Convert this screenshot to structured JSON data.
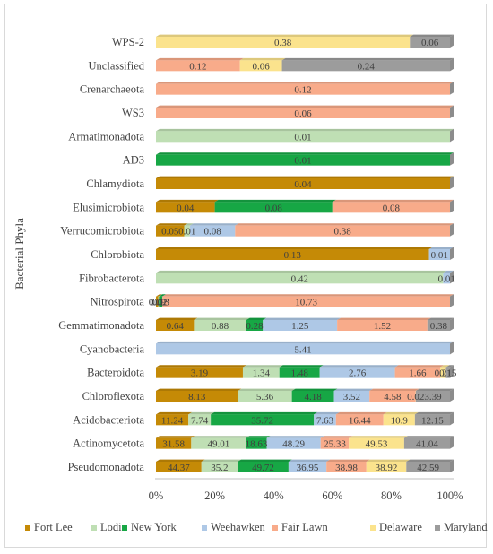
{
  "chart_data": {
    "type": "bar",
    "orientation": "horizontal",
    "stacking": "percent",
    "ylabel": "Bacterial Phyla",
    "xlabel": "",
    "xlim": [
      0,
      100
    ],
    "x_ticks": [
      "0%",
      "20%",
      "40%",
      "60%",
      "80%",
      "100%"
    ],
    "legend_position": "bottom",
    "grid": false,
    "categories": [
      "Pseudomonadota",
      "Actinomycetota",
      "Acidobacteriota",
      "Chloroflexota",
      "Bacteroidota",
      "Cyanobacteria",
      "Gemmatimonadota",
      "Nitrospirota",
      "Fibrobacterota",
      "Chlorobiota",
      "Verrucomicrobiota",
      "Elusimicrobiota",
      "Chlamydiota",
      "AD3",
      "Armatimonadota",
      "WS3",
      "Crenarchaeota",
      "Unclassified",
      "WPS-2"
    ],
    "series": [
      {
        "name": "Fort Lee",
        "color": "#c58a06",
        "values": [
          44.37,
          31.58,
          11.24,
          8.13,
          3.19,
          0,
          0.64,
          0.09,
          0,
          0.13,
          0.05,
          0.04,
          0.04,
          0,
          0,
          0,
          0,
          0,
          0
        ],
        "labels": [
          "44.37",
          "31.58",
          "11.24",
          "8.13",
          "3.19",
          "",
          "0.64",
          "0.09",
          "",
          "0.13",
          "0.05",
          "0.04",
          "0.04",
          "",
          "",
          "",
          "",
          "",
          ""
        ]
      },
      {
        "name": "Lodi",
        "color": "#bfdfb4",
        "values": [
          35.2,
          49.01,
          7.74,
          5.36,
          1.34,
          0,
          0.88,
          0.02,
          0.42,
          0,
          0.01,
          0,
          0,
          0,
          0.01,
          0,
          0,
          0,
          0
        ],
        "labels": [
          "35.2",
          "49.01",
          "7.74",
          "5.36",
          "1.34",
          "",
          "0.88",
          "0.02",
          "0.42",
          "",
          "0.01",
          "",
          "",
          "",
          "0.01",
          "",
          "",
          "",
          ""
        ]
      },
      {
        "name": "New York",
        "color": "#17a745",
        "values": [
          49.72,
          18.63,
          35.72,
          4.18,
          1.48,
          0,
          0.28,
          0.13,
          0,
          0,
          0,
          0.08,
          0,
          0.01,
          0,
          0,
          0,
          0,
          0
        ],
        "labels": [
          "49.72",
          "18.63",
          "35.72",
          "4.18",
          "1.48",
          "",
          "0.28",
          "0.13",
          "",
          "",
          "",
          "0.08",
          "",
          "0.01",
          "",
          "",
          "",
          "",
          ""
        ]
      },
      {
        "name": "Weehawken",
        "color": "#aec8e6",
        "values": [
          36.95,
          48.29,
          7.63,
          3.52,
          2.76,
          5.41,
          1.25,
          0,
          0.01,
          0.01,
          0.08,
          0,
          0,
          0,
          0,
          0,
          0,
          0,
          0
        ],
        "labels": [
          "36.95",
          "48.29",
          "7.63",
          "3.52",
          "2.76",
          "5.41",
          "1.25",
          "",
          "0.01",
          "0.01",
          "0.08",
          "",
          "",
          "",
          "",
          "",
          "",
          "",
          ""
        ]
      },
      {
        "name": "Fair Lawn",
        "color": "#f8ab8a",
        "values": [
          38.98,
          25.33,
          16.44,
          4.58,
          1.66,
          0,
          1.52,
          10.73,
          0,
          0,
          0.38,
          0.08,
          0,
          0,
          0,
          0.06,
          0.12,
          0.12,
          0
        ],
        "labels": [
          "38.98",
          "25.33",
          "16.44",
          "4.58",
          "1.66",
          "",
          "1.52",
          "10.73",
          "",
          "",
          "0.38",
          "0.08",
          "",
          "",
          "",
          "0.06",
          "0.12",
          "0.12",
          ""
        ]
      },
      {
        "name": "Delaware",
        "color": "#fbe38d",
        "values": [
          38.92,
          49.53,
          10.9,
          0.02,
          0.21,
          0,
          0,
          0,
          0,
          0,
          0,
          0,
          0,
          0,
          0,
          0,
          0,
          0.06,
          0.38
        ],
        "labels": [
          "38.92",
          "49.53",
          "10.9",
          "0.02",
          "0.21",
          "",
          "",
          "",
          "",
          "",
          "",
          "",
          "",
          "",
          "",
          "",
          "",
          "0.06",
          "0.38"
        ]
      },
      {
        "name": "Maryland",
        "color": "#9c9c9c",
        "values": [
          42.59,
          41.04,
          12.15,
          3.39,
          0.15,
          0,
          0.38,
          0,
          0,
          0,
          0,
          0,
          0,
          0,
          0,
          0,
          0,
          0.24,
          0.06
        ],
        "labels": [
          "42.59",
          "41.04",
          "12.15",
          "3.39",
          "0.15",
          "",
          "0.38",
          "",
          "",
          "",
          "",
          "",
          "",
          "",
          "",
          "",
          "",
          "0.24",
          "0.06"
        ]
      }
    ]
  }
}
